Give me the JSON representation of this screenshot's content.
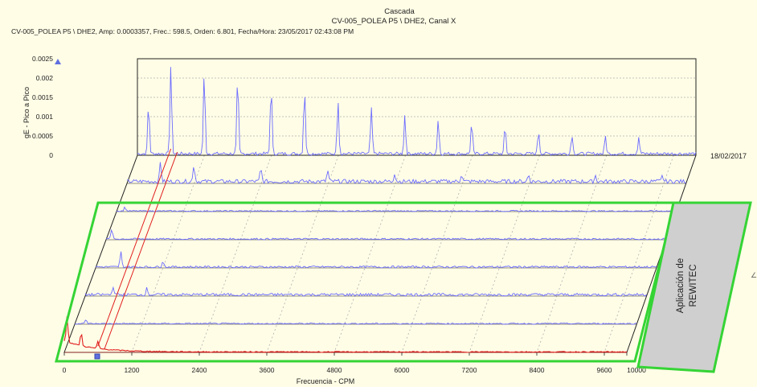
{
  "window": {
    "title": "Cascada",
    "subtitle": "CV-005_POLEA P5 \\ DHE2, Canal X",
    "cursor_readout": "CV-005_POLEA P5 \\ DHE2, Amp: 0.0003357,   Frec.: 598.5,   Orden: 6.801, Fecha/Hora: 23/05/2017 02:43:08 PM"
  },
  "colors": {
    "background": "#fffde6",
    "trace": "#6b6bff",
    "selected_trace": "#e01b1b",
    "highlight_box": "#35d435",
    "callout_fill": "#cfcfcf",
    "grid": "#b0b0b0"
  },
  "annotation": {
    "line1": "Aplicación de",
    "line2": "REWITEC"
  },
  "chart_data": {
    "type": "waterfall",
    "title": "Cascada",
    "subtitle": "CV-005_POLEA P5 \\ DHE2, Canal X",
    "xlabel": "Frecuencia - CPM",
    "ylabel": "gE - Pico a Pico",
    "xlim": [
      0,
      10000
    ],
    "ylim": [
      0,
      0.0025
    ],
    "x_ticks": [
      "0",
      "1200",
      "2400",
      "3600",
      "4800",
      "6000",
      "7200",
      "8400",
      "9600",
      "10000"
    ],
    "y_ticks": [
      "0.0025",
      "0.002",
      "0.0015",
      "0.001",
      "0.0005",
      "0"
    ],
    "grid": true,
    "back_date_label": "18/02/2017",
    "cursor": {
      "frequency": 598.5,
      "amplitude": 0.0003357,
      "order": 6.801,
      "datetime": "23/05/2017 02:43:08 PM"
    },
    "peak_spacing_cpm": 598.5,
    "spectra_back_to_front": [
      {
        "date": "18/02/2017",
        "peaks": [
          {
            "x": 200,
            "y": 0.0013
          },
          {
            "x": 598.5,
            "y": 0.0023
          },
          {
            "x": 1197,
            "y": 0.0021
          },
          {
            "x": 1795,
            "y": 0.002
          },
          {
            "x": 2394,
            "y": 0.0018
          },
          {
            "x": 2992,
            "y": 0.0017
          },
          {
            "x": 3591,
            "y": 0.0014
          },
          {
            "x": 4189,
            "y": 0.0012
          },
          {
            "x": 4788,
            "y": 0.001
          },
          {
            "x": 5386,
            "y": 0.0009
          },
          {
            "x": 5985,
            "y": 0.0008
          },
          {
            "x": 6583,
            "y": 0.0007
          },
          {
            "x": 7182,
            "y": 0.0006
          },
          {
            "x": 7780,
            "y": 0.0005
          },
          {
            "x": 8379,
            "y": 0.00045
          },
          {
            "x": 8977,
            "y": 0.0004
          }
        ]
      },
      {
        "date": "",
        "peaks": [
          {
            "x": 598.5,
            "y": 0.0009
          },
          {
            "x": 1197,
            "y": 0.0008
          },
          {
            "x": 2394,
            "y": 0.0006
          },
          {
            "x": 3591,
            "y": 0.0005
          },
          {
            "x": 4788,
            "y": 0.0004
          },
          {
            "x": 5985,
            "y": 0.00035
          },
          {
            "x": 7182,
            "y": 0.0003
          },
          {
            "x": 8379,
            "y": 0.00028
          },
          {
            "x": 9577,
            "y": 0.00025
          }
        ]
      },
      {
        "date": "",
        "peaks": [
          {
            "x": 150,
            "y": 0.0002
          }
        ]
      },
      {
        "date": "",
        "peaks": [
          {
            "x": 100,
            "y": 0.0005
          }
        ]
      },
      {
        "date": "",
        "peaks": [
          {
            "x": 450,
            "y": 0.0007
          },
          {
            "x": 1200,
            "y": 0.0003
          }
        ]
      },
      {
        "date": "",
        "peaks": [
          {
            "x": 500,
            "y": 0.0004
          },
          {
            "x": 1100,
            "y": 0.0003
          }
        ]
      },
      {
        "date": "",
        "peaks": [
          {
            "x": 200,
            "y": 0.0002
          }
        ]
      },
      {
        "date": "23/05/2017",
        "selected": true,
        "peaks": [
          {
            "x": 50,
            "y": 0.0012
          },
          {
            "x": 300,
            "y": 0.0006
          },
          {
            "x": 598.5,
            "y": 0.0003357
          }
        ]
      }
    ]
  }
}
